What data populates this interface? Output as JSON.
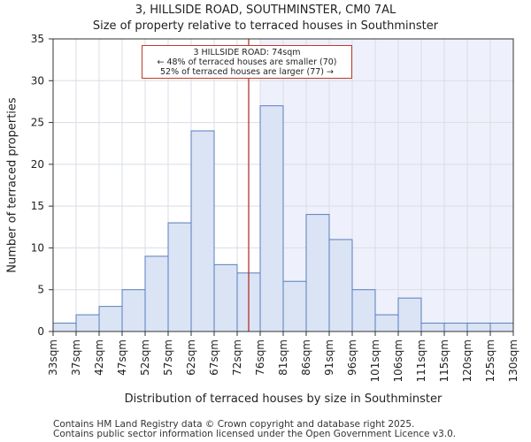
{
  "title_line1": "3, HILLSIDE ROAD, SOUTHMINSTER, CM0 7AL",
  "title_line2": "Size of property relative to terraced houses in Southminster",
  "annotation": {
    "line1": "3 HILLSIDE ROAD: 74sqm",
    "line2": "← 48% of terraced houses are smaller (70)",
    "line3": "52% of terraced houses are larger (77) →"
  },
  "footer": {
    "line1": "Contains HM Land Registry data © Crown copyright and database right 2025.",
    "line2": "Contains public sector information licensed under the Open Government Licence v3.0."
  },
  "colors": {
    "bar_fill": "#dae4f4",
    "bar_edge": "#5a7dbf",
    "highlight_region": "#eef1fb",
    "marker_line": "#b22222",
    "grid": "#d9dde6"
  },
  "chart_data": {
    "type": "bar",
    "title": "Size of property relative to terraced houses in Southminster",
    "xlabel": "Distribution of terraced houses by size in Southminster",
    "ylabel": "Number of terraced properties",
    "ylim": [
      0,
      35
    ],
    "yticks": [
      0,
      5,
      10,
      15,
      20,
      25,
      30,
      35
    ],
    "bin_edges_sqm": [
      33,
      37,
      42,
      47,
      52,
      57,
      62,
      67,
      72,
      76,
      81,
      86,
      91,
      96,
      101,
      106,
      111,
      115,
      120,
      125,
      130
    ],
    "tick_labels": [
      "33sqm",
      "37sqm",
      "42sqm",
      "47sqm",
      "52sqm",
      "57sqm",
      "62sqm",
      "67sqm",
      "72sqm",
      "76sqm",
      "81sqm",
      "86sqm",
      "91sqm",
      "96sqm",
      "101sqm",
      "106sqm",
      "111sqm",
      "115sqm",
      "120sqm",
      "125sqm",
      "130sqm"
    ],
    "values": [
      1,
      2,
      3,
      5,
      9,
      13,
      24,
      8,
      7,
      27,
      6,
      14,
      11,
      5,
      2,
      4,
      1,
      1,
      1,
      1
    ],
    "marker_value_sqm": 74,
    "highlight_from_bin": 9,
    "grid": true
  }
}
